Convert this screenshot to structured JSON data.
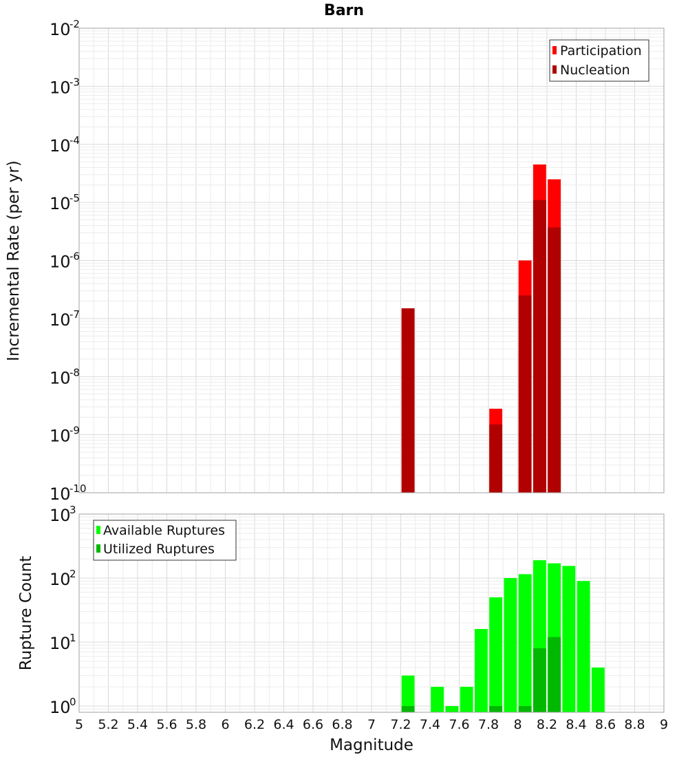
{
  "figure": {
    "title": "Barn"
  },
  "colors": {
    "participation": "#ff0000",
    "nucleation": "#b00000",
    "available": "#00ff00",
    "utilized": "#00b800"
  },
  "chart_data": [
    {
      "type": "bar",
      "title": "Barn",
      "xlabel": "Magnitude",
      "ylabel": "Incremental Rate (per yr)",
      "yscale": "log",
      "xlim": [
        5,
        9
      ],
      "ylim": [
        1e-10,
        0.01
      ],
      "ytick_exponents": [
        -10,
        -9,
        -8,
        -7,
        -6,
        -5,
        -4,
        -3,
        -2
      ],
      "bin_width": 0.1,
      "legend_position": "top-right",
      "series": [
        {
          "name": "Participation",
          "color": "#ff0000",
          "x": [
            7.25,
            7.85,
            8.05,
            8.15,
            8.25
          ],
          "values": [
            1.5e-07,
            2.8e-09,
            1e-06,
            4.5e-05,
            2.5e-05
          ]
        },
        {
          "name": "Nucleation",
          "color": "#b00000",
          "x": [
            7.25,
            7.85,
            8.05,
            8.15,
            8.25
          ],
          "values": [
            1.5e-07,
            1.5e-09,
            2.5e-07,
            1.1e-05,
            3.7e-06
          ]
        }
      ],
      "grid": true
    },
    {
      "type": "bar",
      "xlabel": "Magnitude",
      "ylabel": "Rupture Count",
      "yscale": "log",
      "xlim": [
        5,
        9
      ],
      "ylim": [
        0.8,
        1000
      ],
      "ytick_exponents": [
        0,
        1,
        2,
        3
      ],
      "xticks": [
        "5",
        "5.2",
        "5.4",
        "5.6",
        "5.8",
        "6",
        "6.2",
        "6.4",
        "6.6",
        "6.8",
        "7",
        "7.2",
        "7.4",
        "7.6",
        "7.8",
        "8",
        "8.2",
        "8.4",
        "8.6",
        "8.8",
        "9"
      ],
      "bin_width": 0.1,
      "legend_position": "top-left",
      "series": [
        {
          "name": "Available Ruptures",
          "color": "#00ff00",
          "x": [
            7.25,
            7.45,
            7.55,
            7.65,
            7.75,
            7.85,
            7.95,
            8.05,
            8.15,
            8.25,
            8.35,
            8.45,
            8.55
          ],
          "values": [
            3,
            2,
            1,
            2,
            16,
            50,
            100,
            115,
            190,
            170,
            155,
            90,
            4
          ]
        },
        {
          "name": "Utilized Ruptures",
          "color": "#00b800",
          "x": [
            7.25,
            7.85,
            8.05,
            8.15,
            8.25
          ],
          "values": [
            1,
            1,
            1,
            8,
            12
          ]
        }
      ],
      "grid": true
    }
  ]
}
